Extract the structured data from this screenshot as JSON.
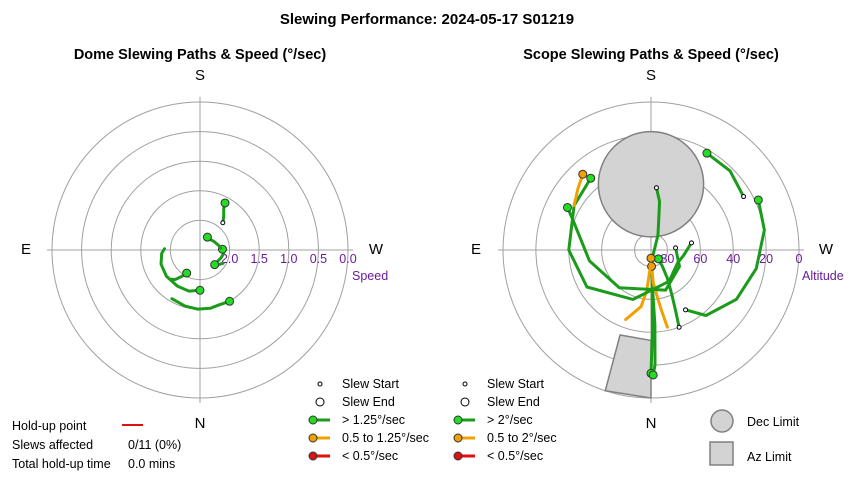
{
  "title": "Slewing Performance: 2024-05-17 S01219",
  "colors": {
    "fast": "#1a9b1a",
    "fastFill": "#22dd22",
    "mid": "#f0a000",
    "slow": "#dd1111",
    "limitFill": "#d3d3d3",
    "ring": "#a0a0a0",
    "tick": "#6a1b9a"
  },
  "chart_data": [
    {
      "type": "polar-paths",
      "title": "Dome Slewing Paths & Speed (°/sec)",
      "directions": {
        "top": "S",
        "bottom": "N",
        "left": "E",
        "right": "W"
      },
      "radial_axis": {
        "label": "Speed",
        "ticks": [
          "2.0",
          "1.5",
          "1.0",
          "0.5",
          "0.0"
        ],
        "tick_values": [
          2.0,
          1.5,
          1.0,
          0.5,
          0.0
        ],
        "range": [
          2.5,
          0.0
        ]
      },
      "slews": [
        {
          "speed_class": "fast",
          "points": [
            [
              -88,
              1.9
            ],
            [
              -95,
              1.85
            ],
            [
              -110,
              1.8
            ],
            [
              -128,
              1.78
            ],
            [
              -148,
              1.78
            ],
            [
              -165,
              1.78
            ],
            [
              -180,
              1.82
            ]
          ],
          "start_marker": false,
          "end_marker": true
        },
        {
          "speed_class": "fast",
          "points": [
            [
              -150,
              1.55
            ],
            [
              -165,
              1.52
            ],
            [
              -178,
              1.5
            ],
            [
              170,
              1.5
            ],
            [
              160,
              1.52
            ],
            [
              150,
              1.5
            ]
          ],
          "start_marker": false,
          "end_marker": true
        },
        {
          "speed_class": "fast",
          "points": [
            [
              -135,
              1.8
            ],
            [
              -140,
              1.85
            ],
            [
              -145,
              1.95
            ],
            [
              -150,
              2.05
            ]
          ],
          "start_marker": false,
          "end_marker": true
        },
        {
          "speed_class": "fast",
          "points": [
            [
              125,
              2.15
            ],
            [
              110,
              2.12
            ],
            [
              100,
              2.1
            ],
            [
              92,
              2.1
            ],
            [
              88,
              2.12
            ]
          ],
          "start_marker": false,
          "end_marker": true
        },
        {
          "speed_class": "fast",
          "points": [
            [
              120,
              2.05
            ],
            [
              128,
              2.1
            ],
            [
              135,
              2.15
            ]
          ],
          "start_marker": false,
          "end_marker": true
        },
        {
          "speed_class": "fast",
          "points": [
            [
              85,
              2.15
            ],
            [
              75,
              2.18
            ],
            [
              60,
              2.22
            ],
            [
              45,
              2.25
            ],
            [
              30,
              2.25
            ]
          ],
          "start_marker": false,
          "end_marker": true
        },
        {
          "speed_class": "fast",
          "points": [
            [
              40,
              1.9
            ],
            [
              35,
              1.8
            ],
            [
              30,
              1.7
            ],
            [
              28,
              1.6
            ]
          ],
          "start_marker": true,
          "end_marker": true
        }
      ]
    },
    {
      "type": "polar-paths",
      "title": "Scope Slewing Paths & Speed (°/sec)",
      "directions": {
        "top": "S",
        "bottom": "N",
        "left": "E",
        "right": "W"
      },
      "radial_axis": {
        "label": "Altitude",
        "ticks": [
          "80",
          "60",
          "40",
          "20",
          "0"
        ],
        "tick_values": [
          80,
          60,
          40,
          20,
          0
        ],
        "range": [
          90,
          0
        ]
      },
      "slews": [
        {
          "speed_class": "fast",
          "points": [
            [
              5,
              52
            ],
            [
              10,
              60
            ],
            [
              15,
              72
            ],
            [
              25,
              80
            ],
            [
              175,
              84
            ],
            [
              178,
              70
            ],
            [
              179,
              40
            ],
            [
              180,
              15
            ]
          ],
          "start_marker": true,
          "end_marker": true
        },
        {
          "speed_class": "fast",
          "points": [
            [
              175,
              84
            ],
            [
              178,
              70
            ],
            [
              177,
              45
            ],
            [
              178,
              20
            ],
            [
              179,
              14
            ]
          ],
          "start_marker": false,
          "end_marker": true
        },
        {
          "speed_class": "fast",
          "points": [
            [
              160,
              40
            ],
            [
              158,
              50
            ],
            [
              155,
              60
            ],
            [
              150,
              70
            ],
            [
              145,
              78
            ],
            [
              140,
              83
            ]
          ],
          "start_marker": true,
          "end_marker": true
        },
        {
          "speed_class": "mid",
          "points": [
            [
              168,
              42
            ],
            [
              170,
              52
            ],
            [
              172,
              60
            ],
            [
              176,
              70
            ],
            [
              178,
              80
            ]
          ],
          "start_marker": false,
          "end_marker": true
        },
        {
          "speed_class": "mid",
          "points": [
            [
              200,
              45
            ],
            [
              190,
              55
            ],
            [
              186,
              65
            ],
            [
              182,
              80
            ],
            [
              180,
              85
            ]
          ],
          "start_marker": false,
          "end_marker": true
        },
        {
          "speed_class": "fast",
          "points": [
            [
              150,
              48
            ],
            [
              140,
              38
            ],
            [
              120,
              30
            ],
            [
              100,
              25
            ],
            [
              80,
              20
            ],
            [
              65,
              18
            ]
          ],
          "start_marker": true,
          "end_marker": true
        },
        {
          "speed_class": "fast",
          "points": [
            [
              80,
              65
            ],
            [
              100,
              70
            ],
            [
              115,
              72
            ],
            [
              150,
              68
            ],
            [
              200,
              58
            ],
            [
              240,
              45
            ],
            [
              270,
              40
            ],
            [
              300,
              36
            ],
            [
              320,
              33
            ]
          ],
          "start_marker": true,
          "end_marker": true
        },
        {
          "speed_class": "mid",
          "points": [
            [
              300,
              36
            ],
            [
              310,
              32
            ],
            [
              318,
              28
            ]
          ],
          "start_marker": false,
          "end_marker": true
        },
        {
          "speed_class": "fast",
          "points": [
            [
              85,
              75
            ],
            [
              120,
              70
            ],
            [
              160,
              64
            ],
            [
              220,
              60
            ],
            [
              260,
              52
            ],
            [
              290,
              40
            ],
            [
              297,
              33
            ]
          ],
          "start_marker": true,
          "end_marker": true
        },
        {
          "speed_class": "fast",
          "points": [
            [
              60,
              25
            ],
            [
              45,
              22
            ],
            [
              30,
              22
            ]
          ],
          "start_marker": true,
          "end_marker": true
        }
      ],
      "dec_limit": {
        "center": [
          0,
          50
        ],
        "radius_alt": 16
      },
      "az_limit": {
        "az_range": [
          -20,
          0
        ],
        "alt_range": [
          0,
          35
        ]
      }
    }
  ],
  "legend_dome": {
    "items": [
      {
        "marker": "start",
        "label": "Slew Start"
      },
      {
        "marker": "end",
        "label": "Slew End"
      },
      {
        "marker": "fast",
        "label": "> 1.25°/sec"
      },
      {
        "marker": "mid",
        "label": "0.5 to 1.25°/sec"
      },
      {
        "marker": "slow",
        "label": "< 0.5°/sec"
      }
    ]
  },
  "legend_scope": {
    "items": [
      {
        "marker": "start",
        "label": "Slew Start"
      },
      {
        "marker": "end",
        "label": "Slew End"
      },
      {
        "marker": "fast",
        "label": "> 2°/sec"
      },
      {
        "marker": "mid",
        "label": "0.5 to 2°/sec"
      },
      {
        "marker": "slow",
        "label": "< 0.5°/sec"
      }
    ]
  },
  "limits_legend": {
    "dec": "Dec Limit",
    "az": "Az Limit"
  },
  "holdup": {
    "point_label": "Hold-up point",
    "slews_label": "Slews affected",
    "slews_value": "0/11 (0%)",
    "time_label": "Total hold-up time",
    "time_value": "0.0 mins"
  }
}
